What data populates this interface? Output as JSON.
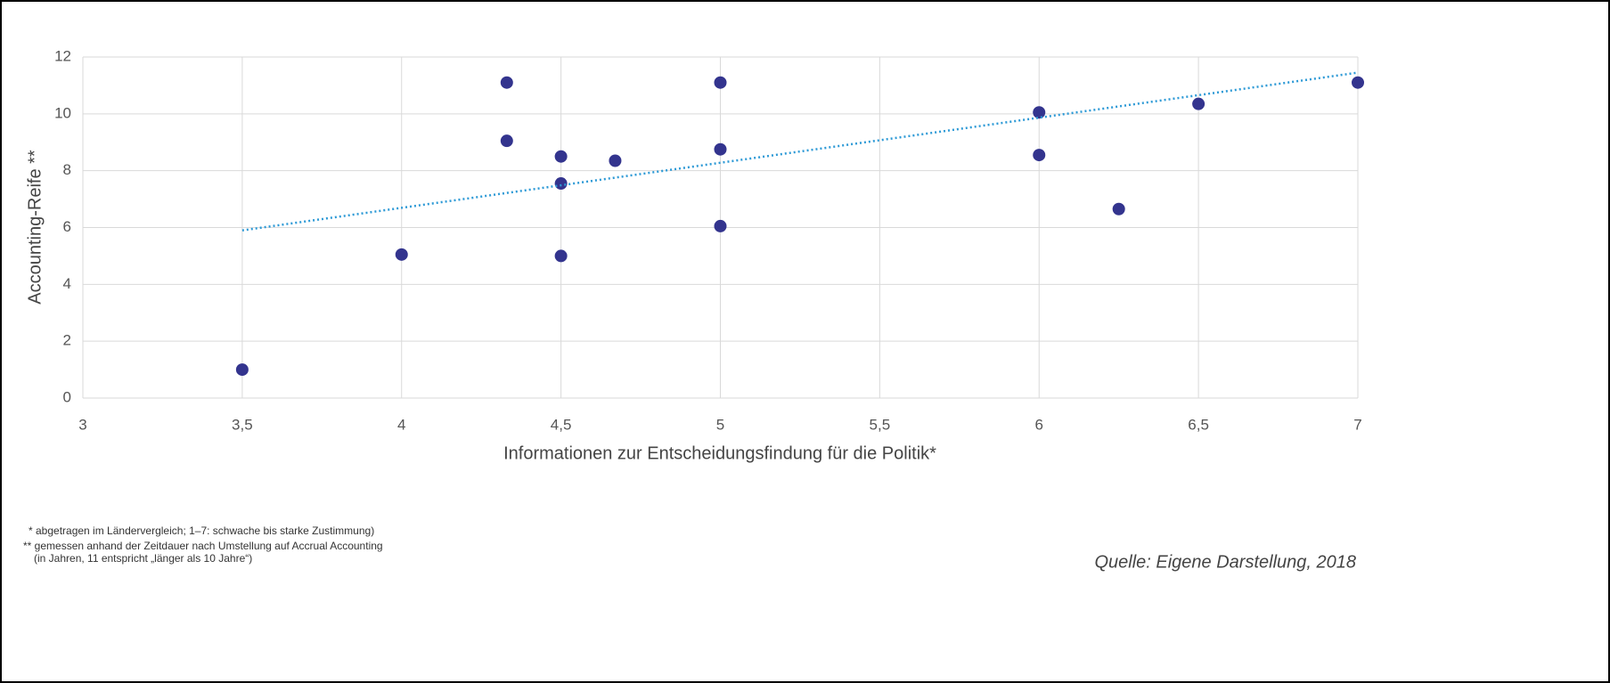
{
  "chart_data": {
    "type": "scatter",
    "x_label": "Informationen zur Entscheidungsfindung für die Politik*",
    "y_label": "Accounting-Reife **",
    "x": [
      3.5,
      4,
      4.33,
      4.33,
      4.5,
      4.5,
      4.5,
      4.67,
      5,
      5,
      5,
      6,
      6,
      6.25,
      6.5,
      7
    ],
    "values": [
      1,
      5.05,
      11.1,
      9.05,
      8.5,
      7.55,
      5,
      8.35,
      11.1,
      8.75,
      6.05,
      10.05,
      8.55,
      6.65,
      10.35,
      11.1
    ],
    "color": "#33348e",
    "trendline": {
      "x": [
        3.5,
        7
      ],
      "y": [
        5.9,
        11.45
      ],
      "color": "#2e9ad6"
    },
    "xlim": [
      3,
      7
    ],
    "xticks": [
      3,
      {
        "value": 3.5,
        "label": "3,5"
      },
      4,
      {
        "value": 4.5,
        "label": "4,5"
      },
      5,
      {
        "value": 5.5,
        "label": "5,5"
      },
      6,
      {
        "value": 6.5,
        "label": "6,5"
      },
      7
    ],
    "ylim": [
      0,
      12
    ],
    "yticks": [
      0,
      2,
      4,
      6,
      8,
      10,
      12
    ],
    "grid": true,
    "footnotes": [
      "* abgetragen im Ländervergleich; 1–7: schwache bis starke Zustimmung)",
      "** gemessen anhand der Zeitdauer nach Umstellung auf Accrual Accounting",
      "(in Jahren, 11 entspricht „länger als 10 Jahre“)"
    ],
    "source": "Quelle: Eigene Darstellung, 2018"
  }
}
